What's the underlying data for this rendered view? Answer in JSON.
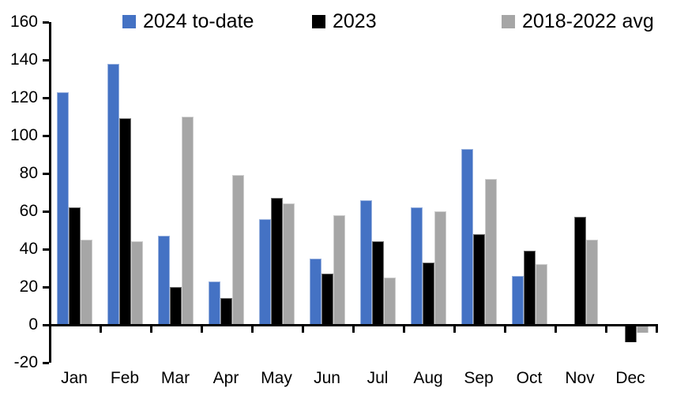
{
  "chart_data": {
    "type": "bar",
    "title": "",
    "xlabel": "",
    "ylabel": "",
    "categories": [
      "Jan",
      "Feb",
      "Mar",
      "Apr",
      "May",
      "Jun",
      "Jul",
      "Aug",
      "Sep",
      "Oct",
      "Nov",
      "Dec"
    ],
    "series": [
      {
        "name": "2024 to-date",
        "color": "#4472C4",
        "values": [
          123,
          138,
          47,
          23,
          56,
          35,
          66,
          62,
          93,
          26,
          null,
          null
        ]
      },
      {
        "name": "2023",
        "color": "#000000",
        "values": [
          62,
          109,
          20,
          14,
          67,
          27,
          44,
          33,
          48,
          39,
          57,
          -9
        ]
      },
      {
        "name": "2018-2022 avg",
        "color": "#A6A6A6",
        "values": [
          45,
          44,
          110,
          79,
          64,
          58,
          25,
          60,
          77,
          32,
          45,
          -4
        ]
      }
    ],
    "ylim": [
      -20,
      160
    ],
    "yticks": [
      160,
      140,
      120,
      100,
      80,
      60,
      40,
      20,
      0,
      -20
    ],
    "grid": false,
    "legend_position": "top"
  }
}
